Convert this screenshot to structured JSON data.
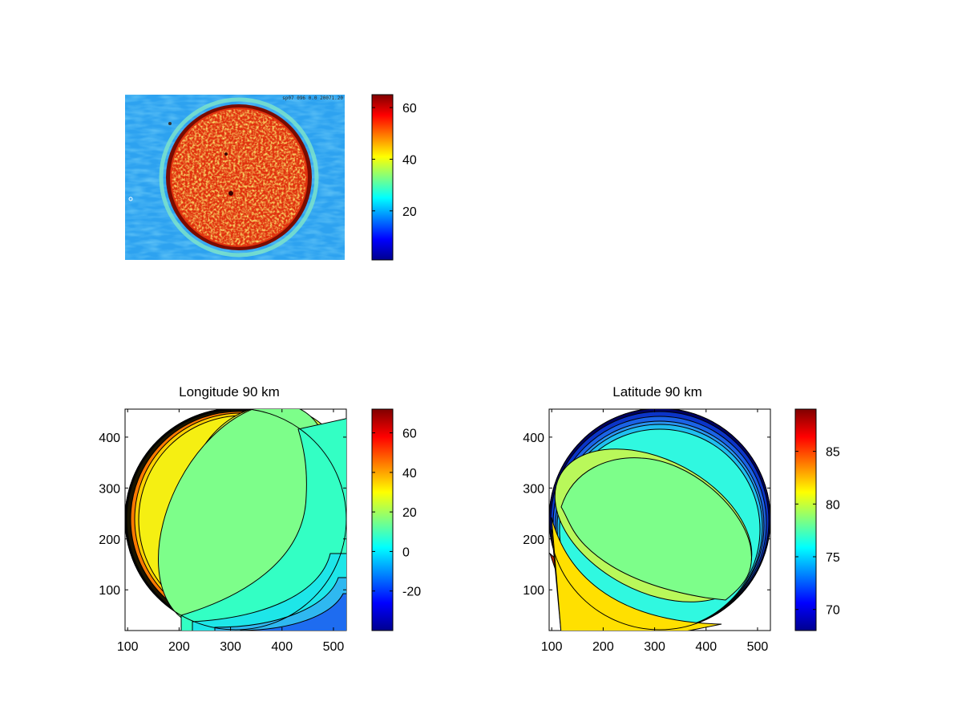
{
  "colormap": "jet",
  "chart_data": [
    {
      "type": "heatmap",
      "name": "image",
      "title": "",
      "xlabel": "",
      "ylabel": "",
      "axes_visible": false,
      "watermark": "sp07 096 0.0 20071.20",
      "description_values": {
        "disk_level": 55,
        "background_level": 25
      },
      "colorbar": {
        "min": 1,
        "max": 65,
        "ticks": [
          20,
          40,
          60
        ]
      }
    },
    {
      "type": "heatmap",
      "subtype": "filled-contour",
      "name": "longitude",
      "title": "Longitude 90 km",
      "xlabel": "",
      "ylabel": "",
      "xlim": [
        95,
        525
      ],
      "ylim": [
        20,
        455
      ],
      "xticks": [
        100,
        200,
        300,
        400,
        500
      ],
      "yticks": [
        100,
        200,
        300,
        400
      ],
      "colorbar": {
        "min": -40,
        "max": 72,
        "ticks": [
          -20,
          0,
          20,
          40,
          60
        ]
      },
      "contour_levels": [
        -5,
        0,
        5,
        10,
        15,
        20,
        25,
        30,
        35,
        40
      ]
    },
    {
      "type": "heatmap",
      "subtype": "filled-contour",
      "name": "latitude",
      "title": "Latitude 90 km",
      "xlabel": "",
      "ylabel": "",
      "xlim": [
        95,
        525
      ],
      "ylim": [
        20,
        455
      ],
      "xticks": [
        100,
        200,
        300,
        400,
        500
      ],
      "yticks": [
        100,
        200,
        300,
        400
      ],
      "colorbar": {
        "min": 68,
        "max": 89,
        "ticks": [
          70,
          75,
          80,
          85
        ]
      },
      "contour_levels": [
        70,
        71,
        72,
        73,
        74,
        75,
        77,
        79,
        80,
        81,
        82
      ]
    }
  ]
}
